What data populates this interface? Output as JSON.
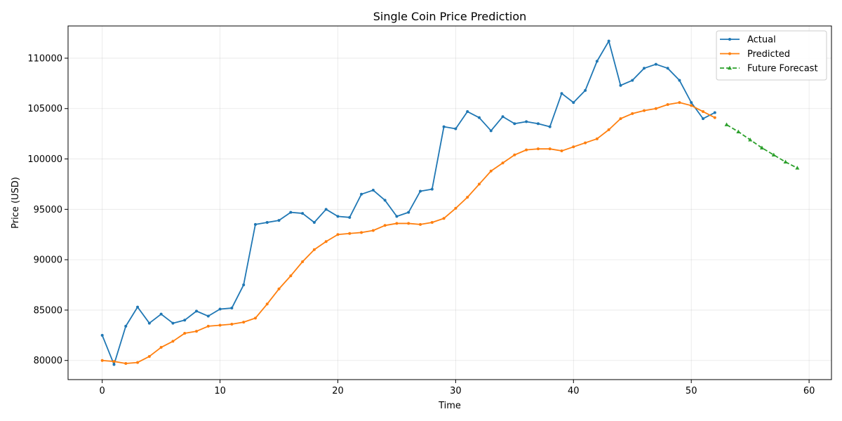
{
  "chart_data": {
    "type": "line",
    "title": "Single Coin Price Prediction",
    "xlabel": "Time",
    "ylabel": "Price (USD)",
    "xlim": [
      -2.9,
      61.9
    ],
    "ylim": [
      78100,
      113200
    ],
    "xticks": [
      0,
      10,
      20,
      30,
      40,
      50,
      60
    ],
    "yticks": [
      80000,
      85000,
      90000,
      95000,
      100000,
      105000,
      110000
    ],
    "grid": true,
    "legend_position": "top-right",
    "series": [
      {
        "name": "Actual",
        "color": "#1f77b4",
        "style": "solid",
        "marker": "circle",
        "x": [
          0,
          1,
          2,
          3,
          4,
          5,
          6,
          7,
          8,
          9,
          10,
          11,
          12,
          13,
          14,
          15,
          16,
          17,
          18,
          19,
          20,
          21,
          22,
          23,
          24,
          25,
          26,
          27,
          28,
          29,
          30,
          31,
          32,
          33,
          34,
          35,
          36,
          37,
          38,
          39,
          40,
          41,
          42,
          43,
          44,
          45,
          46,
          47,
          48,
          49,
          50,
          51,
          52
        ],
        "values": [
          82500,
          79600,
          83400,
          85300,
          83700,
          84600,
          83700,
          84000,
          84900,
          84400,
          85100,
          85200,
          87500,
          93500,
          93700,
          93900,
          94700,
          94600,
          93700,
          95000,
          94300,
          94200,
          96500,
          96900,
          95900,
          94300,
          94700,
          96800,
          97000,
          103200,
          103000,
          104700,
          104100,
          102800,
          104200,
          103500,
          103700,
          103500,
          103200,
          106500,
          105600,
          106800,
          109700,
          111700,
          107300,
          107800,
          109000,
          109400,
          109000,
          107800,
          105600,
          104000,
          104600
        ]
      },
      {
        "name": "Predicted",
        "color": "#ff7f0e",
        "style": "solid",
        "marker": "circle",
        "x": [
          0,
          1,
          2,
          3,
          4,
          5,
          6,
          7,
          8,
          9,
          10,
          11,
          12,
          13,
          14,
          15,
          16,
          17,
          18,
          19,
          20,
          21,
          22,
          23,
          24,
          25,
          26,
          27,
          28,
          29,
          30,
          31,
          32,
          33,
          34,
          35,
          36,
          37,
          38,
          39,
          40,
          41,
          42,
          43,
          44,
          45,
          46,
          47,
          48,
          49,
          50,
          51,
          52
        ],
        "values": [
          80000,
          79900,
          79700,
          79800,
          80400,
          81300,
          81900,
          82700,
          82900,
          83400,
          83500,
          83600,
          83800,
          84200,
          85600,
          87100,
          88400,
          89800,
          91000,
          91800,
          92500,
          92600,
          92700,
          92900,
          93400,
          93600,
          93600,
          93500,
          93700,
          94100,
          95100,
          96200,
          97500,
          98800,
          99600,
          100400,
          100900,
          101000,
          101000,
          100800,
          101200,
          101600,
          102000,
          102900,
          104000,
          104500,
          104800,
          105000,
          105400,
          105600,
          105300,
          104700,
          104100
        ]
      },
      {
        "name": "Future Forecast",
        "color": "#2ca02c",
        "style": "dashed",
        "marker": "triangle",
        "x": [
          53,
          54,
          55,
          56,
          57,
          58,
          59
        ],
        "values": [
          103400,
          102700,
          101900,
          101100,
          100400,
          99700,
          99100
        ]
      }
    ]
  }
}
